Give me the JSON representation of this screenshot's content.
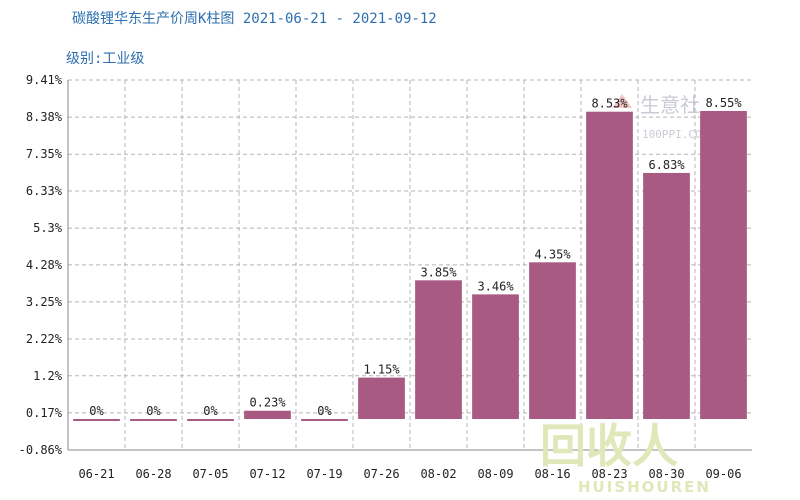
{
  "chart_data": {
    "type": "bar",
    "title": "碳酸锂华东生产价周K柱图 2021-06-21 - 2021-09-12",
    "subtitle": "级别:工业级",
    "categories": [
      "06-21",
      "06-28",
      "07-05",
      "07-12",
      "07-19",
      "07-26",
      "08-02",
      "08-09",
      "08-16",
      "08-23",
      "08-30",
      "09-06"
    ],
    "values": [
      0,
      0,
      0,
      0.23,
      0,
      1.15,
      3.85,
      3.46,
      4.35,
      8.53,
      6.83,
      8.55
    ],
    "data_labels": [
      "0%",
      "0%",
      "0%",
      "0.23%",
      "0%",
      "1.15%",
      "3.85%",
      "3.46%",
      "4.35%",
      "8.53%",
      "6.83%",
      "8.55%"
    ],
    "y_ticks": [
      9.41,
      8.38,
      7.35,
      6.33,
      5.3,
      4.28,
      3.25,
      2.22,
      1.2,
      0.17,
      -0.86
    ],
    "y_tick_labels": [
      "9.41%",
      "8.38%",
      "7.35%",
      "6.33%",
      "5.3%",
      "4.28%",
      "3.25%",
      "2.22%",
      "1.2%",
      "0.17%",
      "-0.86%"
    ],
    "ylim": [
      -0.86,
      9.41
    ],
    "grid": true,
    "bar_color": "#a85a83",
    "grid_color": "#b5b5b5"
  },
  "watermark": {
    "name": "生意社",
    "url": "100PPI.COM"
  },
  "logo": {
    "text": "回收人",
    "subtext": "HUISHOUREN"
  }
}
